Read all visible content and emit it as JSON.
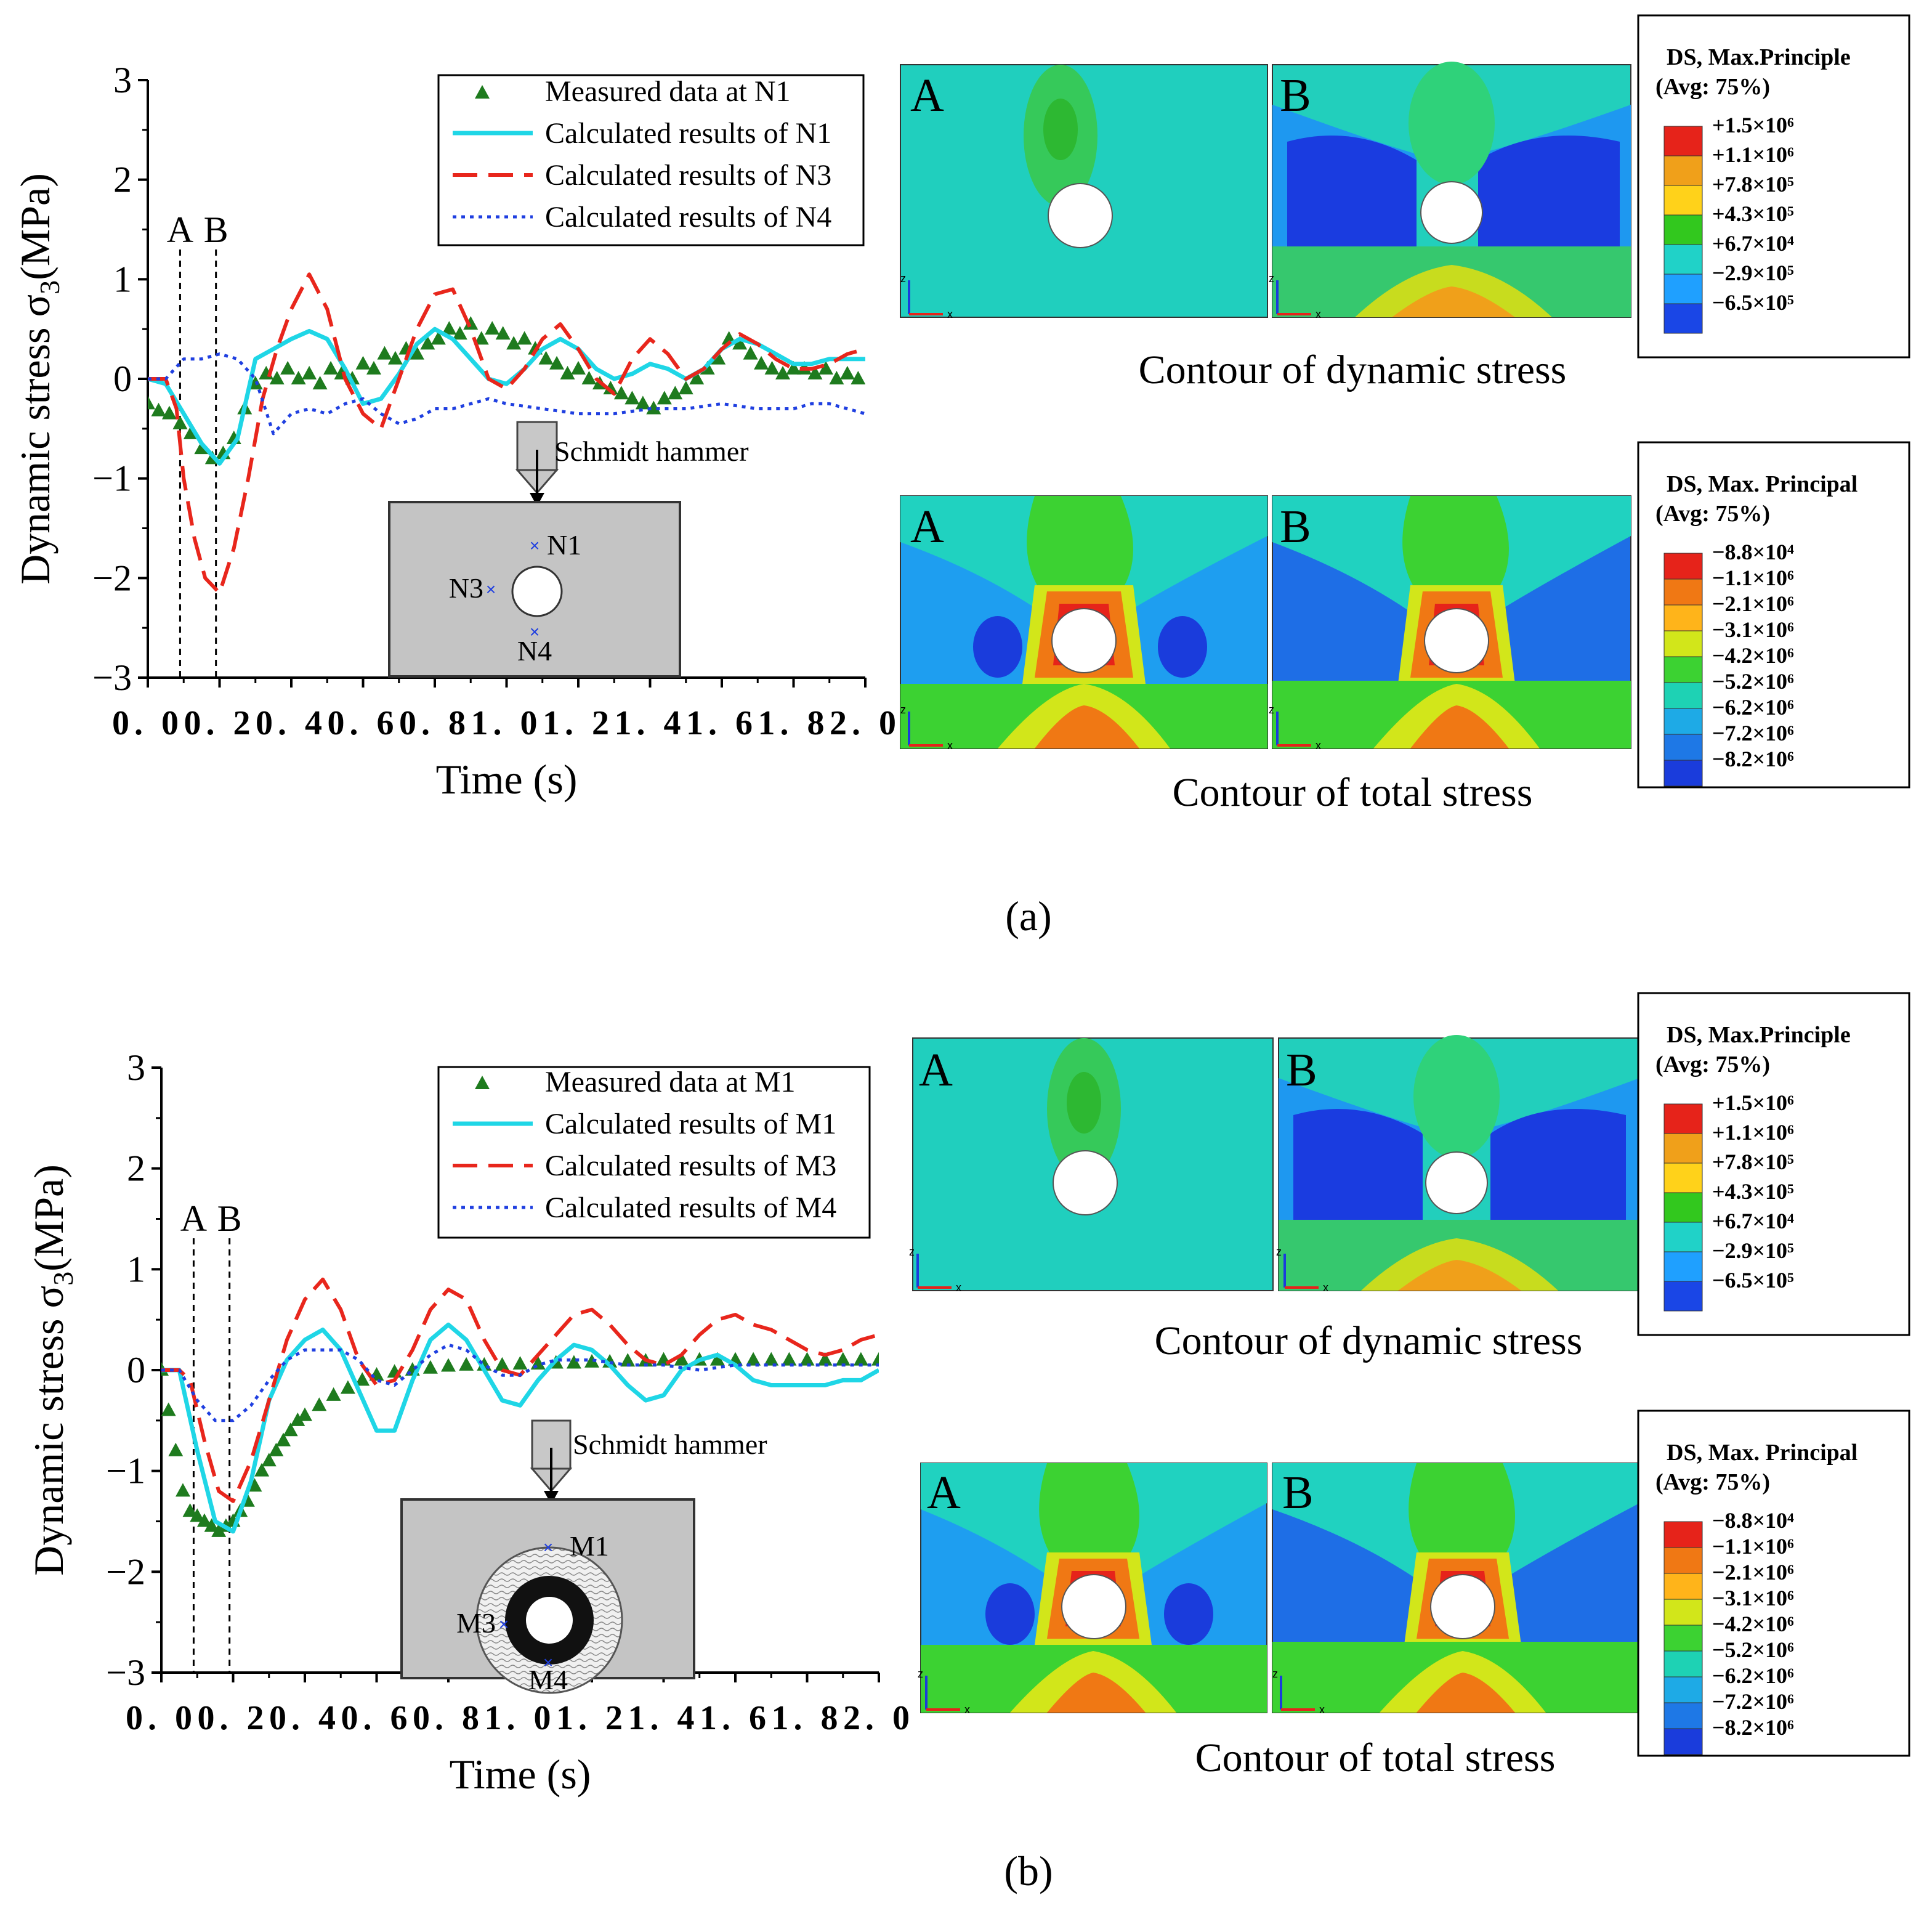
{
  "chart_data": [
    {
      "type": "line",
      "panel": "(a)",
      "xlabel": "Time (s)",
      "ylabel": "Dynamic stress σ",
      "ylabel_sub": "3",
      "ylabel_unit": "(MPa)",
      "xlim": [
        0,
        2.0
      ],
      "ylim": [
        -3,
        3
      ],
      "xticks": [
        "0. 0",
        "0. 2",
        "0. 4",
        "0. 6",
        "0. 8",
        "1. 0",
        "1. 2",
        "1. 4",
        "1. 6",
        "1. 8",
        "2. 0"
      ],
      "yticks": [
        "−3",
        "−2",
        "−1",
        "0",
        "1",
        "2",
        "3"
      ],
      "markers": [
        {
          "label": "A",
          "x": 0.09
        },
        {
          "label": "B",
          "x": 0.19
        }
      ],
      "series": [
        {
          "name": "Measured data at N1",
          "style": "triangle",
          "color": "#1e7b1e",
          "x": [
            0.0,
            0.03,
            0.06,
            0.09,
            0.12,
            0.15,
            0.18,
            0.21,
            0.24,
            0.27,
            0.3,
            0.33,
            0.36,
            0.39,
            0.42,
            0.45,
            0.48,
            0.51,
            0.54,
            0.57,
            0.6,
            0.63,
            0.66,
            0.69,
            0.72,
            0.75,
            0.78,
            0.81,
            0.84,
            0.87,
            0.9,
            0.93,
            0.96,
            0.99,
            1.02,
            1.05,
            1.08,
            1.11,
            1.14,
            1.17,
            1.2,
            1.23,
            1.26,
            1.29,
            1.32,
            1.35,
            1.38,
            1.41,
            1.44,
            1.47,
            1.5,
            1.53,
            1.56,
            1.59,
            1.62,
            1.65,
            1.68,
            1.71,
            1.74,
            1.77,
            1.8,
            1.83,
            1.86,
            1.89,
            1.92,
            1.95,
            1.98
          ],
          "y": [
            -0.25,
            -0.32,
            -0.35,
            -0.45,
            -0.55,
            -0.7,
            -0.8,
            -0.75,
            -0.6,
            -0.3,
            -0.05,
            0.05,
            0.0,
            0.1,
            0.0,
            0.05,
            -0.05,
            0.1,
            0.05,
            0.0,
            0.15,
            0.1,
            0.25,
            0.2,
            0.3,
            0.25,
            0.35,
            0.4,
            0.5,
            0.45,
            0.55,
            0.4,
            0.5,
            0.45,
            0.35,
            0.4,
            0.3,
            0.2,
            0.15,
            0.05,
            0.1,
            0.0,
            -0.05,
            -0.1,
            -0.15,
            -0.2,
            -0.25,
            -0.3,
            -0.2,
            -0.15,
            -0.1,
            0.0,
            0.1,
            0.2,
            0.4,
            0.35,
            0.25,
            0.15,
            0.1,
            0.05,
            0.1,
            0.1,
            0.05,
            0.1,
            0.0,
            0.05,
            0.0
          ]
        },
        {
          "name": "Calculated results of N1",
          "style": "solid",
          "color": "#1fd6e6",
          "x": [
            0.0,
            0.05,
            0.1,
            0.15,
            0.2,
            0.25,
            0.3,
            0.35,
            0.4,
            0.45,
            0.5,
            0.55,
            0.6,
            0.65,
            0.7,
            0.75,
            0.8,
            0.85,
            0.9,
            0.95,
            1.0,
            1.05,
            1.1,
            1.15,
            1.2,
            1.25,
            1.3,
            1.35,
            1.4,
            1.45,
            1.5,
            1.55,
            1.6,
            1.65,
            1.7,
            1.75,
            1.8,
            1.85,
            1.9,
            1.95,
            2.0
          ],
          "y": [
            0.0,
            -0.05,
            -0.35,
            -0.65,
            -0.85,
            -0.6,
            0.2,
            0.3,
            0.4,
            0.48,
            0.4,
            0.1,
            -0.25,
            -0.2,
            0.05,
            0.35,
            0.5,
            0.4,
            0.2,
            0.0,
            -0.05,
            0.1,
            0.3,
            0.4,
            0.3,
            0.1,
            0.0,
            0.05,
            0.15,
            0.1,
            0.0,
            0.1,
            0.3,
            0.4,
            0.35,
            0.25,
            0.15,
            0.15,
            0.2,
            0.2,
            0.2
          ]
        },
        {
          "name": "Calculated results of N3",
          "style": "dashed",
          "color": "#e8261c",
          "x": [
            0.0,
            0.05,
            0.08,
            0.1,
            0.13,
            0.16,
            0.2,
            0.24,
            0.28,
            0.32,
            0.36,
            0.4,
            0.45,
            0.5,
            0.55,
            0.6,
            0.65,
            0.7,
            0.75,
            0.8,
            0.85,
            0.9,
            0.95,
            1.0,
            1.05,
            1.1,
            1.15,
            1.2,
            1.25,
            1.3,
            1.35,
            1.4,
            1.45,
            1.5,
            1.55,
            1.6,
            1.65,
            1.7,
            1.75,
            1.8,
            1.85,
            1.9,
            1.95,
            2.0
          ],
          "y": [
            0.0,
            0.0,
            -0.3,
            -1.0,
            -1.6,
            -2.0,
            -2.15,
            -1.7,
            -1.0,
            -0.2,
            0.3,
            0.7,
            1.05,
            0.7,
            0.0,
            -0.35,
            -0.5,
            0.0,
            0.5,
            0.85,
            0.9,
            0.5,
            0.0,
            -0.1,
            0.1,
            0.4,
            0.55,
            0.3,
            0.0,
            -0.15,
            0.2,
            0.4,
            0.25,
            0.0,
            0.1,
            0.3,
            0.45,
            0.35,
            0.2,
            0.1,
            0.1,
            0.15,
            0.25,
            0.3
          ]
        },
        {
          "name": "Calculated results of N4",
          "style": "dotted",
          "color": "#1f3fe0",
          "x": [
            0.0,
            0.05,
            0.1,
            0.15,
            0.2,
            0.25,
            0.3,
            0.35,
            0.4,
            0.45,
            0.5,
            0.55,
            0.6,
            0.65,
            0.7,
            0.75,
            0.8,
            0.85,
            0.9,
            0.95,
            1.0,
            1.1,
            1.2,
            1.3,
            1.4,
            1.5,
            1.6,
            1.7,
            1.8,
            1.85,
            1.9,
            1.95,
            2.0
          ],
          "y": [
            0.0,
            0.0,
            0.2,
            0.2,
            0.25,
            0.2,
            0.0,
            -0.55,
            -0.35,
            -0.3,
            -0.35,
            -0.25,
            -0.2,
            -0.35,
            -0.45,
            -0.4,
            -0.3,
            -0.3,
            -0.25,
            -0.2,
            -0.25,
            -0.3,
            -0.35,
            -0.35,
            -0.3,
            -0.3,
            -0.25,
            -0.3,
            -0.3,
            -0.25,
            -0.25,
            -0.3,
            -0.35
          ]
        }
      ],
      "inset": {
        "title": "Schmidt hammer",
        "points": [
          "N1",
          "N3",
          "N4"
        ]
      }
    },
    {
      "type": "line",
      "panel": "(b)",
      "xlabel": "Time (s)",
      "ylabel": "Dynamic stress σ",
      "ylabel_sub": "3",
      "ylabel_unit": "(MPa)",
      "xlim": [
        0,
        2.0
      ],
      "ylim": [
        -3,
        3
      ],
      "xticks": [
        "0. 0",
        "0. 2",
        "0. 4",
        "0. 6",
        "0. 8",
        "1. 0",
        "1. 2",
        "1. 4",
        "1. 6",
        "1. 8",
        "2. 0"
      ],
      "yticks": [
        "−3",
        "−2",
        "−1",
        "0",
        "1",
        "2",
        "3"
      ],
      "markers": [
        {
          "label": "A",
          "x": 0.09
        },
        {
          "label": "B",
          "x": 0.19
        }
      ],
      "series": [
        {
          "name": "Measured data at M1",
          "style": "triangle",
          "color": "#1e7b1e",
          "x": [
            0.0,
            0.02,
            0.04,
            0.06,
            0.08,
            0.1,
            0.12,
            0.14,
            0.16,
            0.18,
            0.2,
            0.22,
            0.24,
            0.26,
            0.28,
            0.3,
            0.32,
            0.34,
            0.36,
            0.38,
            0.4,
            0.44,
            0.48,
            0.52,
            0.56,
            0.6,
            0.65,
            0.7,
            0.75,
            0.8,
            0.85,
            0.9,
            0.95,
            1.0,
            1.05,
            1.1,
            1.15,
            1.2,
            1.25,
            1.3,
            1.35,
            1.4,
            1.45,
            1.5,
            1.55,
            1.6,
            1.65,
            1.7,
            1.75,
            1.8,
            1.85,
            1.9,
            1.95,
            2.0
          ],
          "y": [
            0.0,
            -0.4,
            -0.8,
            -1.2,
            -1.4,
            -1.45,
            -1.5,
            -1.55,
            -1.6,
            -1.55,
            -1.5,
            -1.4,
            -1.3,
            -1.15,
            -1.0,
            -0.9,
            -0.8,
            -0.7,
            -0.6,
            -0.5,
            -0.45,
            -0.35,
            -0.25,
            -0.18,
            -0.1,
            -0.05,
            -0.02,
            0.0,
            0.02,
            0.04,
            0.05,
            0.05,
            0.05,
            0.06,
            0.06,
            0.07,
            0.07,
            0.08,
            0.08,
            0.09,
            0.09,
            0.1,
            0.1,
            0.1,
            0.1,
            0.1,
            0.1,
            0.1,
            0.1,
            0.1,
            0.1,
            0.1,
            0.1,
            0.1
          ]
        },
        {
          "name": "Calculated results of M1",
          "style": "solid",
          "color": "#1fd6e6",
          "x": [
            0.0,
            0.05,
            0.1,
            0.15,
            0.2,
            0.25,
            0.3,
            0.35,
            0.4,
            0.45,
            0.5,
            0.55,
            0.6,
            0.65,
            0.7,
            0.75,
            0.8,
            0.85,
            0.9,
            0.95,
            1.0,
            1.05,
            1.1,
            1.15,
            1.2,
            1.25,
            1.3,
            1.35,
            1.4,
            1.45,
            1.5,
            1.55,
            1.6,
            1.65,
            1.7,
            1.75,
            1.8,
            1.85,
            1.9,
            1.95,
            2.0
          ],
          "y": [
            0.0,
            0.0,
            -0.8,
            -1.5,
            -1.6,
            -1.1,
            -0.3,
            0.1,
            0.3,
            0.4,
            0.2,
            -0.2,
            -0.6,
            -0.6,
            -0.1,
            0.3,
            0.45,
            0.3,
            0.0,
            -0.3,
            -0.35,
            -0.1,
            0.1,
            0.25,
            0.2,
            0.05,
            -0.15,
            -0.3,
            -0.25,
            0.0,
            0.1,
            0.15,
            0.05,
            -0.1,
            -0.15,
            -0.15,
            -0.15,
            -0.15,
            -0.1,
            -0.1,
            0.0
          ]
        },
        {
          "name": "Calculated results of M3",
          "style": "dashed",
          "color": "#e8261c",
          "x": [
            0.0,
            0.05,
            0.08,
            0.12,
            0.16,
            0.2,
            0.25,
            0.3,
            0.35,
            0.4,
            0.45,
            0.5,
            0.55,
            0.6,
            0.65,
            0.7,
            0.75,
            0.8,
            0.85,
            0.9,
            0.95,
            1.0,
            1.05,
            1.1,
            1.15,
            1.2,
            1.25,
            1.3,
            1.35,
            1.4,
            1.45,
            1.5,
            1.55,
            1.6,
            1.65,
            1.7,
            1.75,
            1.8,
            1.85,
            1.9,
            1.95,
            2.0
          ],
          "y": [
            0.0,
            0.0,
            -0.1,
            -0.7,
            -1.2,
            -1.3,
            -0.9,
            -0.3,
            0.3,
            0.7,
            0.9,
            0.6,
            0.1,
            -0.15,
            -0.1,
            0.2,
            0.6,
            0.8,
            0.7,
            0.3,
            0.0,
            -0.05,
            0.15,
            0.35,
            0.55,
            0.6,
            0.45,
            0.25,
            0.1,
            0.05,
            0.15,
            0.35,
            0.5,
            0.55,
            0.45,
            0.4,
            0.3,
            0.2,
            0.15,
            0.2,
            0.3,
            0.35
          ]
        },
        {
          "name": "Calculated results of M4",
          "style": "dotted",
          "color": "#1f3fe0",
          "x": [
            0.0,
            0.05,
            0.1,
            0.15,
            0.2,
            0.25,
            0.3,
            0.35,
            0.4,
            0.45,
            0.5,
            0.55,
            0.6,
            0.65,
            0.7,
            0.75,
            0.8,
            0.85,
            0.9,
            0.95,
            1.0,
            1.05,
            1.1,
            1.2,
            1.3,
            1.4,
            1.5,
            1.6,
            1.7,
            1.8,
            1.9,
            2.0
          ],
          "y": [
            0.0,
            0.0,
            -0.3,
            -0.5,
            -0.5,
            -0.35,
            -0.1,
            0.1,
            0.2,
            0.2,
            0.2,
            0.1,
            -0.1,
            -0.15,
            0.0,
            0.15,
            0.25,
            0.2,
            0.05,
            -0.05,
            -0.05,
            0.05,
            0.1,
            0.1,
            0.05,
            0.05,
            0.0,
            0.05,
            0.05,
            0.05,
            0.05,
            0.05
          ]
        }
      ],
      "inset": {
        "title": "Schmidt hammer",
        "points": [
          "M1",
          "M3",
          "M4"
        ]
      }
    }
  ],
  "contours": {
    "a": {
      "dynamic": {
        "caption": "Contour of dynamic stress",
        "panels": [
          "A",
          "B"
        ],
        "legend": {
          "title1": "DS, Max.Principle",
          "title2": "(Avg: 75%)",
          "levels": [
            "+1.5×10⁶",
            "+1.1×10⁶",
            "+7.8×10⁵",
            "+4.3×10⁵",
            "+6.7×10⁴",
            "−2.9×10⁵",
            "−6.5×10⁵"
          ],
          "colors": [
            "#e6231a",
            "#f0a01a",
            "#ffd21a",
            "#32c81e",
            "#20d2c8",
            "#1fa0ff",
            "#1a46e6"
          ]
        }
      },
      "total": {
        "caption": "Contour of total stress",
        "panels": [
          "A",
          "B"
        ],
        "legend": {
          "title1": "DS, Max. Principal",
          "title2": "(Avg: 75%)",
          "levels": [
            "−8.8×10⁴",
            "−1.1×10⁶",
            "−2.1×10⁶",
            "−3.1×10⁶",
            "−4.2×10⁶",
            "−5.2×10⁶",
            "−6.2×10⁶",
            "−7.2×10⁶",
            "−8.2×10⁶"
          ],
          "colors": [
            "#e6231a",
            "#f07814",
            "#ffb41a",
            "#d2e61a",
            "#3cd232",
            "#1ed2b4",
            "#1eaae6",
            "#1e78e6",
            "#1a3cdc"
          ]
        }
      }
    },
    "b": {
      "dynamic": {
        "caption": "Contour of dynamic stress",
        "panels": [
          "A",
          "B"
        ],
        "legend": {
          "title1": "DS, Max.Principle",
          "title2": "(Avg: 75%)",
          "levels": [
            "+1.5×10⁶",
            "+1.1×10⁶",
            "+7.8×10⁵",
            "+4.3×10⁵",
            "+6.7×10⁴",
            "−2.9×10⁵",
            "−6.5×10⁵"
          ],
          "colors": [
            "#e6231a",
            "#f0a01a",
            "#ffd21a",
            "#32c81e",
            "#20d2c8",
            "#1fa0ff",
            "#1a46e6"
          ]
        }
      },
      "total": {
        "caption": "Contour of total stress",
        "panels": [
          "A",
          "B"
        ],
        "legend": {
          "title1": "DS, Max. Principal",
          "title2": "(Avg: 75%)",
          "levels": [
            "−8.8×10⁴",
            "−1.1×10⁶",
            "−2.1×10⁶",
            "−3.1×10⁶",
            "−4.2×10⁶",
            "−5.2×10⁶",
            "−6.2×10⁶",
            "−7.2×10⁶",
            "−8.2×10⁶"
          ],
          "colors": [
            "#e6231a",
            "#f07814",
            "#ffb41a",
            "#d2e61a",
            "#3cd232",
            "#1ed2b4",
            "#1eaae6",
            "#1e78e6",
            "#1a3cdc"
          ]
        }
      }
    }
  },
  "sublabels": {
    "a": "(a)",
    "b": "(b)"
  },
  "axis_letters": {
    "z": "z",
    "x": "x"
  }
}
